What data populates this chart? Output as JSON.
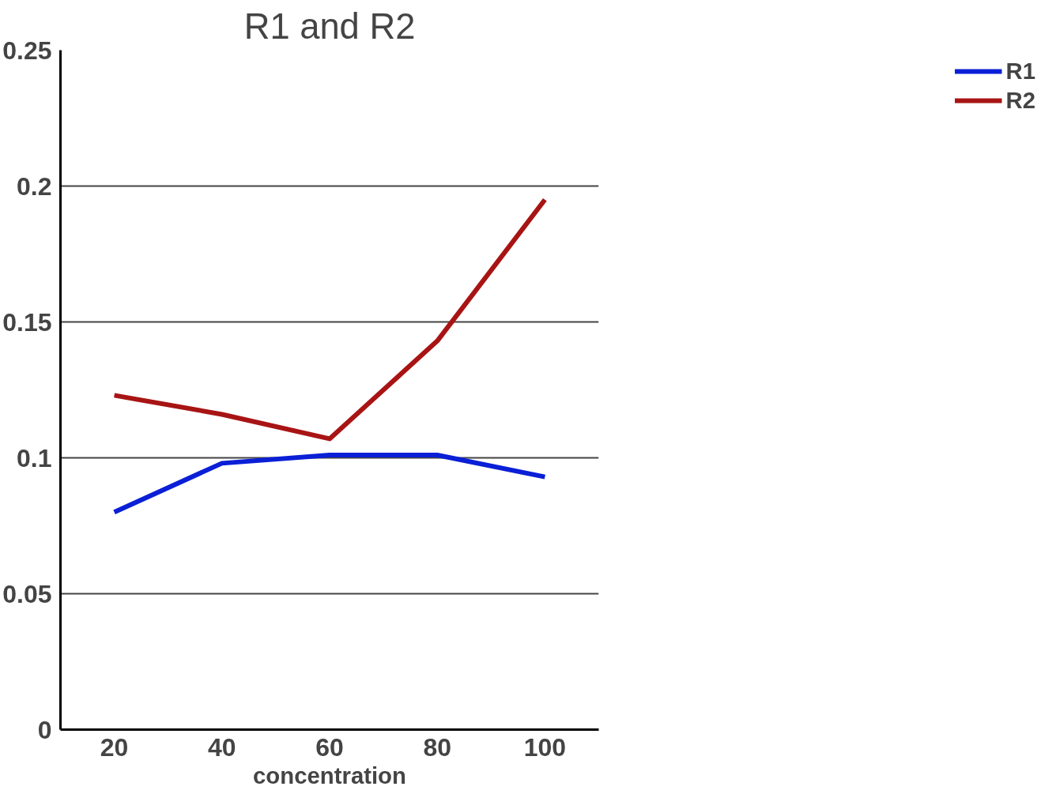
{
  "chart_data": {
    "type": "line",
    "title": "R1 and R2",
    "xlabel": "concentration",
    "categories": [
      "20",
      "40",
      "60",
      "80",
      "100"
    ],
    "series": [
      {
        "name": "R1",
        "color": "#0a1fd6",
        "values": [
          0.08,
          0.098,
          0.101,
          0.101,
          0.093
        ]
      },
      {
        "name": "R2",
        "color": "#a81414",
        "values": [
          0.123,
          0.116,
          0.107,
          0.143,
          0.195
        ]
      }
    ],
    "ylim": [
      0,
      0.25
    ],
    "yticks": [
      0,
      0.05,
      0.1,
      0.15,
      0.2,
      0.25
    ],
    "grid": "y",
    "legend": "right",
    "marker": "none",
    "line_style": "solid"
  }
}
